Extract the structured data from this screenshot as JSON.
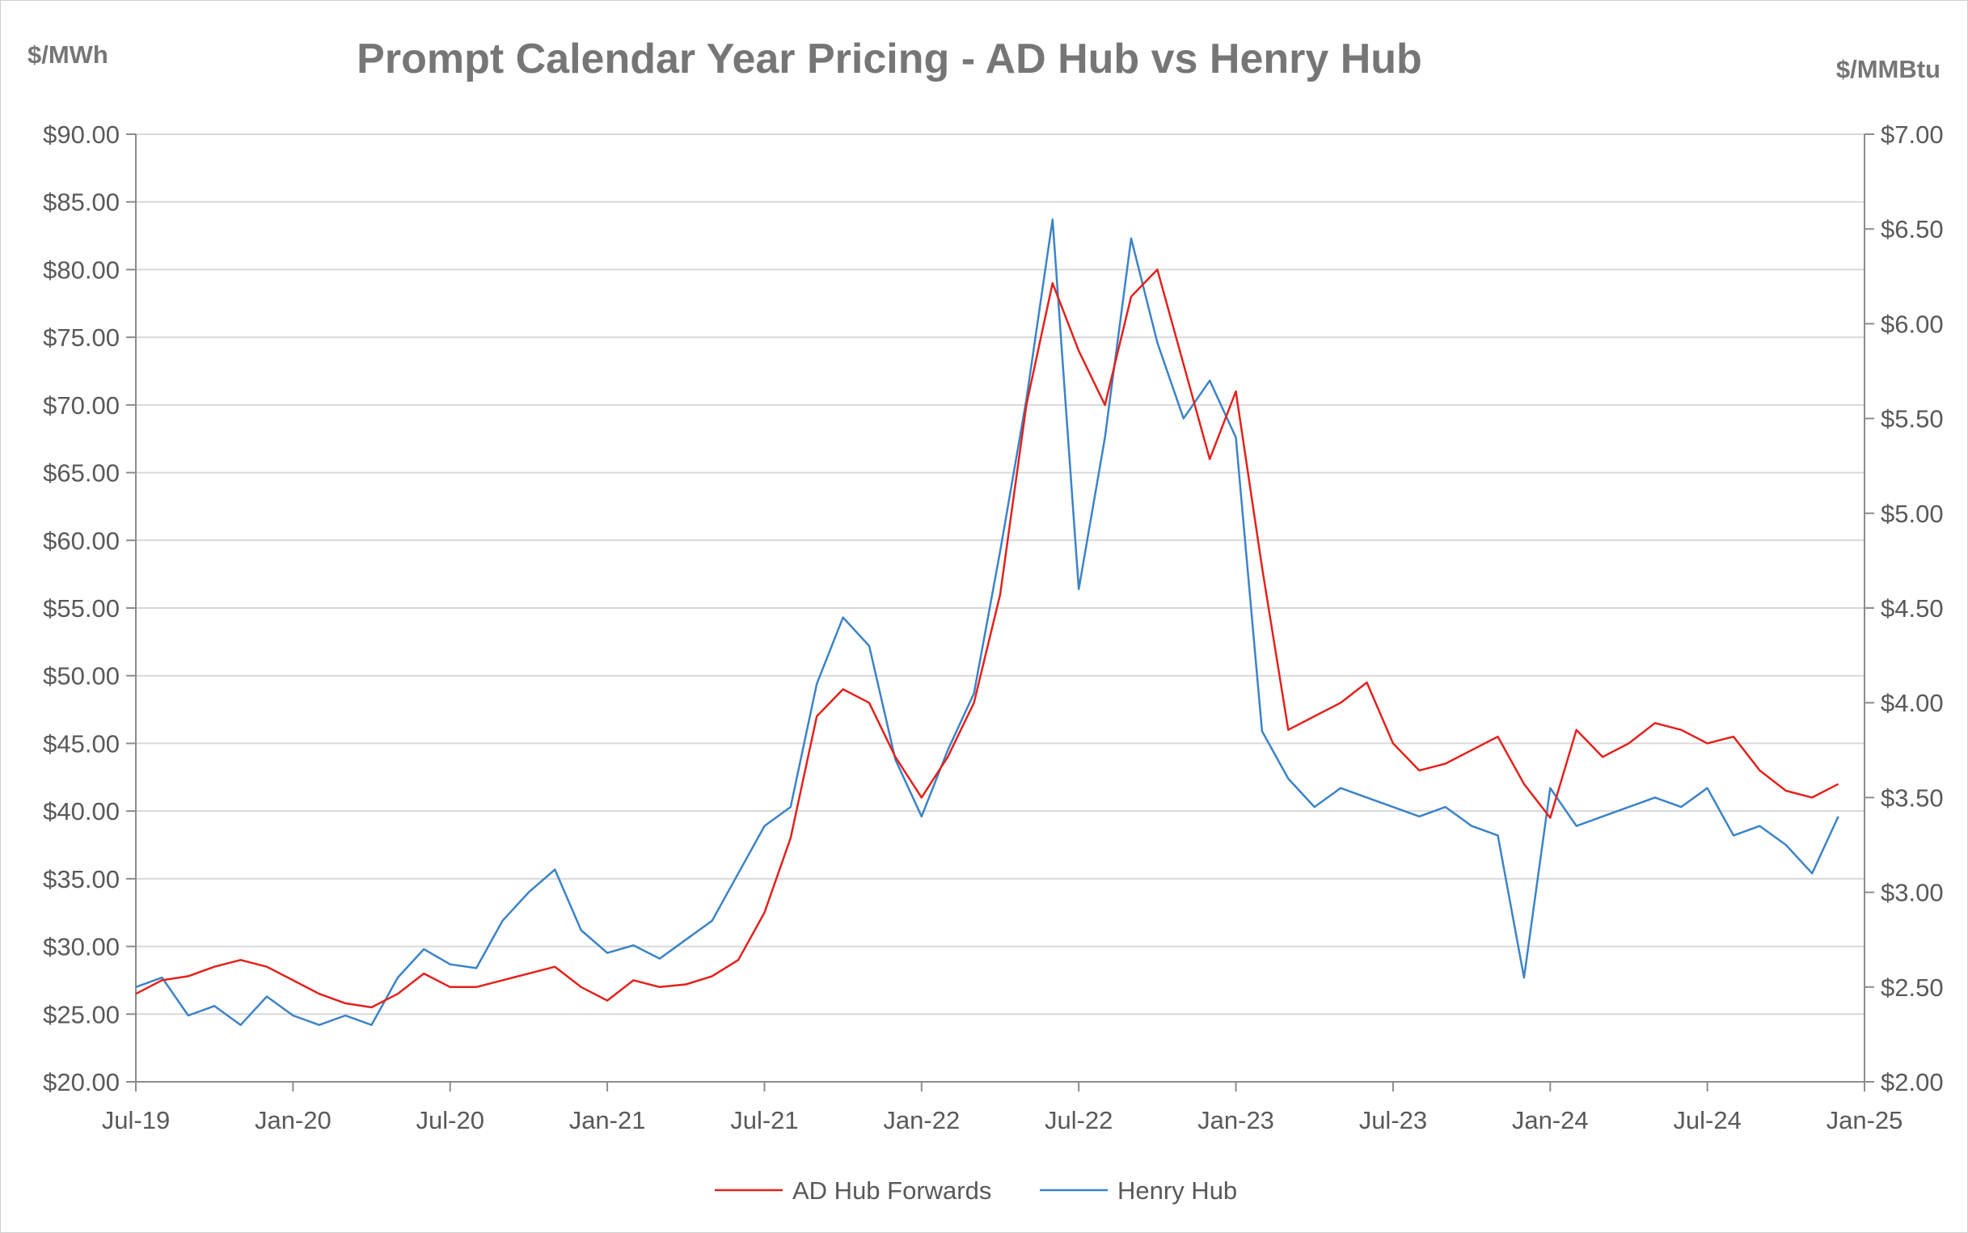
{
  "chart_data": {
    "type": "line",
    "title": "Prompt Calendar Year Pricing - AD Hub vs Henry Hub",
    "y_left_label": "$/MWh",
    "y_right_label": "$/MMBtu",
    "ylim_left": [
      20,
      90
    ],
    "ylim_right": [
      2,
      7
    ],
    "y_left_ticks": [
      "$20.00",
      "$25.00",
      "$30.00",
      "$35.00",
      "$40.00",
      "$45.00",
      "$50.00",
      "$55.00",
      "$60.00",
      "$65.00",
      "$70.00",
      "$75.00",
      "$80.00",
      "$85.00",
      "$90.00"
    ],
    "y_right_ticks": [
      "$2.00",
      "$2.50",
      "$3.00",
      "$3.50",
      "$4.00",
      "$4.50",
      "$5.00",
      "$5.50",
      "$6.00",
      "$6.50",
      "$7.00"
    ],
    "x_ticks": [
      "Jul-19",
      "Jan-20",
      "Jul-20",
      "Jan-21",
      "Jul-21",
      "Jan-22",
      "Jul-22",
      "Jan-23",
      "Jul-23",
      "Jan-24",
      "Jul-24",
      "Jan-25"
    ],
    "grid": true,
    "legend_position": "bottom",
    "series": [
      {
        "name": "AD Hub Forwards",
        "axis": "left",
        "color": "#e3211c",
        "x": [
          "Jul-19",
          "Aug-19",
          "Sep-19",
          "Oct-19",
          "Nov-19",
          "Dec-19",
          "Jan-20",
          "Feb-20",
          "Mar-20",
          "Apr-20",
          "May-20",
          "Jun-20",
          "Jul-20",
          "Aug-20",
          "Sep-20",
          "Oct-20",
          "Nov-20",
          "Dec-20",
          "Jan-21",
          "Feb-21",
          "Mar-21",
          "Apr-21",
          "May-21",
          "Jun-21",
          "Jul-21",
          "Aug-21",
          "Sep-21",
          "Oct-21",
          "Nov-21",
          "Dec-21",
          "Jan-22",
          "Feb-22",
          "Mar-22",
          "Apr-22",
          "May-22",
          "Jun-22",
          "Jul-22",
          "Aug-22",
          "Sep-22",
          "Oct-22",
          "Nov-22",
          "Dec-22",
          "Jan-23",
          "Feb-23",
          "Mar-23",
          "Apr-23",
          "May-23",
          "Jun-23",
          "Jul-23",
          "Aug-23",
          "Sep-23",
          "Oct-23",
          "Nov-23",
          "Dec-23",
          "Jan-24",
          "Feb-24",
          "Mar-24",
          "Apr-24",
          "May-24",
          "Jun-24",
          "Jul-24",
          "Aug-24",
          "Sep-24",
          "Oct-24",
          "Nov-24",
          "Dec-24"
        ],
        "values": [
          26.5,
          27.5,
          27.8,
          28.5,
          29.0,
          28.5,
          27.5,
          26.5,
          25.8,
          25.5,
          26.5,
          28.0,
          27.0,
          27.0,
          27.5,
          28.0,
          28.5,
          27.0,
          26.0,
          27.5,
          27.0,
          27.2,
          27.8,
          29.0,
          32.5,
          38.0,
          47.0,
          49.0,
          48.0,
          44.0,
          41.0,
          44.0,
          48.0,
          56.0,
          70.0,
          79.0,
          74.0,
          70.0,
          78.0,
          80.0,
          73.0,
          66.0,
          71.0,
          58.0,
          46.0,
          47.0,
          48.0,
          49.5,
          45.0,
          43.0,
          43.5,
          44.5,
          45.5,
          42.0,
          39.5,
          46.0,
          44.0,
          45.0,
          46.5,
          46.0,
          45.0,
          45.5,
          43.0,
          41.5,
          41.0,
          42.0
        ]
      },
      {
        "name": "Henry Hub",
        "axis": "right",
        "color": "#3b83c8",
        "x": [
          "Jul-19",
          "Aug-19",
          "Sep-19",
          "Oct-19",
          "Nov-19",
          "Dec-19",
          "Jan-20",
          "Feb-20",
          "Mar-20",
          "Apr-20",
          "May-20",
          "Jun-20",
          "Jul-20",
          "Aug-20",
          "Sep-20",
          "Oct-20",
          "Nov-20",
          "Dec-20",
          "Jan-21",
          "Feb-21",
          "Mar-21",
          "Apr-21",
          "May-21",
          "Jun-21",
          "Jul-21",
          "Aug-21",
          "Sep-21",
          "Oct-21",
          "Nov-21",
          "Dec-21",
          "Jan-22",
          "Feb-22",
          "Mar-22",
          "Apr-22",
          "May-22",
          "Jun-22",
          "Jul-22",
          "Aug-22",
          "Sep-22",
          "Oct-22",
          "Nov-22",
          "Dec-22",
          "Jan-23",
          "Feb-23",
          "Mar-23",
          "Apr-23",
          "May-23",
          "Jun-23",
          "Jul-23",
          "Aug-23",
          "Sep-23",
          "Oct-23",
          "Nov-23",
          "Dec-23",
          "Jan-24",
          "Feb-24",
          "Mar-24",
          "Apr-24",
          "May-24",
          "Jun-24",
          "Jul-24",
          "Aug-24",
          "Sep-24",
          "Oct-24",
          "Nov-24",
          "Dec-24"
        ],
        "values": [
          2.5,
          2.55,
          2.35,
          2.4,
          2.3,
          2.45,
          2.35,
          2.3,
          2.35,
          2.3,
          2.55,
          2.7,
          2.62,
          2.6,
          2.85,
          3.0,
          3.12,
          2.8,
          2.68,
          2.72,
          2.65,
          2.75,
          2.85,
          3.1,
          3.35,
          3.45,
          4.1,
          4.45,
          4.3,
          3.7,
          3.4,
          3.75,
          4.05,
          4.8,
          5.6,
          6.55,
          4.6,
          5.4,
          6.45,
          5.9,
          5.5,
          5.7,
          5.4,
          3.85,
          3.6,
          3.45,
          3.55,
          3.5,
          3.45,
          3.4,
          3.45,
          3.35,
          3.3,
          2.55,
          3.55,
          3.35,
          3.4,
          3.45,
          3.5,
          3.45,
          3.55,
          3.3,
          3.35,
          3.25,
          3.1,
          3.4
        ]
      }
    ]
  }
}
